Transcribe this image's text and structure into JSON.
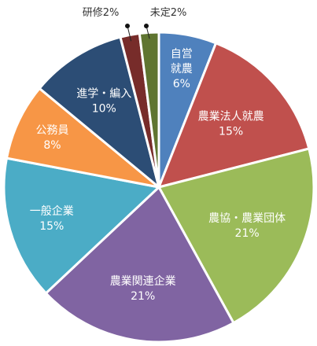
{
  "chart_data": {
    "type": "pie",
    "title": "",
    "categories": [
      "自営就農",
      "農業法人就農",
      "農協・農業団体",
      "農業関連企業",
      "一般企業",
      "公務員",
      "進学・編入",
      "研修",
      "未定"
    ],
    "values": [
      6,
      15,
      21,
      21,
      15,
      8,
      10,
      2,
      2
    ],
    "value_labels": [
      "6%",
      "15%",
      "21%",
      "21%",
      "15%",
      "8%",
      "10%",
      "2%",
      "2%"
    ],
    "label_lines": [
      [
        "自営",
        "就農",
        "6%"
      ],
      [
        "農業法人就農",
        "15%"
      ],
      [
        "農協・農業団体",
        "21%"
      ],
      [
        "農業関連企業",
        "21%"
      ],
      [
        "一般企業",
        "15%"
      ],
      [
        "公務員",
        "8%"
      ],
      [
        "進学・編入",
        "10%"
      ],
      [
        "研修2%"
      ],
      [
        "未定2%"
      ]
    ],
    "colors": [
      "#4f81bd",
      "#c0504d",
      "#9bbb59",
      "#8064a2",
      "#4bacc6",
      "#f79646",
      "#2c4d75",
      "#772c2a",
      "#5f7530"
    ],
    "start_angle_deg": 0,
    "direction": "clockwise",
    "legend": "none"
  }
}
